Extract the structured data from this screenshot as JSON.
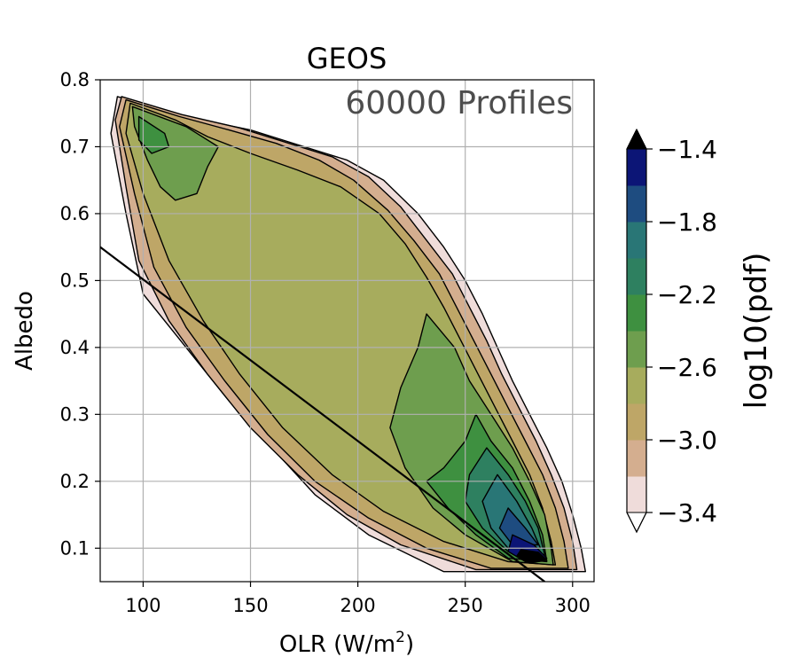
{
  "chart_data": {
    "type": "contour",
    "title": "GEOS",
    "annotation": "60000 Profiles",
    "xlabel_main": "OLR (W/m",
    "xlabel_sup": "2",
    "xlabel_close": ")",
    "ylabel": "Albedo",
    "xlim": [
      80,
      310
    ],
    "ylim": [
      0.05,
      0.8
    ],
    "xticks": [
      100,
      150,
      200,
      250,
      300
    ],
    "xtick_labels": [
      "100",
      "150",
      "200",
      "250",
      "300"
    ],
    "yticks": [
      0.1,
      0.2,
      0.3,
      0.4,
      0.5,
      0.6,
      0.7,
      0.8
    ],
    "ytick_labels": [
      "0.1",
      "0.2",
      "0.3",
      "0.4",
      "0.5",
      "0.6",
      "0.7",
      "0.8"
    ],
    "grid": true,
    "reference_line": {
      "x": [
        80,
        287
      ],
      "y": [
        0.55,
        0.05
      ]
    },
    "colorbar": {
      "label": "log10(pdf)",
      "levels": [
        -3.4,
        -3.2,
        -3.0,
        -2.8,
        -2.6,
        -2.4,
        -2.2,
        -2.0,
        -1.8,
        -1.6,
        -1.4
      ],
      "colors": [
        "#efdcda",
        "#d4ae8f",
        "#bea667",
        "#a7ac5d",
        "#6e9e4e",
        "#3e9040",
        "#2e8060",
        "#297676",
        "#1e4c80",
        "#0c1576"
      ],
      "extend_low_color": "#ffffff",
      "extend_high_color": "#000000",
      "tick_values": [
        -1.4,
        -1.8,
        -2.2,
        -2.6,
        -3.0,
        -3.4
      ],
      "tick_labels": [
        "−1.4",
        "−1.8",
        "−2.2",
        "−2.6",
        "−3.0",
        "−3.4"
      ]
    },
    "regions": [
      {
        "level": -3.4,
        "color": "#efdcda",
        "points": [
          [
            88,
            0.775
          ],
          [
            120,
            0.745
          ],
          [
            150,
            0.725
          ],
          [
            175,
            0.7
          ],
          [
            195,
            0.68
          ],
          [
            212,
            0.65
          ],
          [
            228,
            0.6
          ],
          [
            240,
            0.55
          ],
          [
            250,
            0.5
          ],
          [
            258,
            0.45
          ],
          [
            265,
            0.4
          ],
          [
            272,
            0.35
          ],
          [
            280,
            0.3
          ],
          [
            288,
            0.25
          ],
          [
            295,
            0.2
          ],
          [
            300,
            0.15
          ],
          [
            304,
            0.1
          ],
          [
            306,
            0.065
          ],
          [
            240,
            0.065
          ],
          [
            205,
            0.12
          ],
          [
            180,
            0.18
          ],
          [
            160,
            0.25
          ],
          [
            140,
            0.32
          ],
          [
            120,
            0.4
          ],
          [
            100,
            0.48
          ],
          [
            92,
            0.6
          ],
          [
            85,
            0.72
          ]
        ]
      },
      {
        "level": -3.2,
        "color": "#d4ae8f",
        "points": [
          [
            90,
            0.775
          ],
          [
            118,
            0.748
          ],
          [
            145,
            0.728
          ],
          [
            168,
            0.705
          ],
          [
            188,
            0.685
          ],
          [
            205,
            0.655
          ],
          [
            220,
            0.61
          ],
          [
            232,
            0.56
          ],
          [
            244,
            0.51
          ],
          [
            252,
            0.46
          ],
          [
            260,
            0.41
          ],
          [
            267,
            0.36
          ],
          [
            275,
            0.31
          ],
          [
            283,
            0.26
          ],
          [
            290,
            0.21
          ],
          [
            296,
            0.16
          ],
          [
            300,
            0.11
          ],
          [
            302,
            0.068
          ],
          [
            255,
            0.068
          ],
          [
            220,
            0.105
          ],
          [
            195,
            0.15
          ],
          [
            172,
            0.21
          ],
          [
            150,
            0.28
          ],
          [
            130,
            0.36
          ],
          [
            112,
            0.44
          ],
          [
            98,
            0.53
          ],
          [
            92,
            0.64
          ],
          [
            87,
            0.74
          ]
        ]
      },
      {
        "level": -3.0,
        "color": "#bea667",
        "points": [
          [
            92,
            0.77
          ],
          [
            117,
            0.745
          ],
          [
            140,
            0.725
          ],
          [
            162,
            0.705
          ],
          [
            182,
            0.68
          ],
          [
            198,
            0.65
          ],
          [
            214,
            0.605
          ],
          [
            226,
            0.56
          ],
          [
            238,
            0.51
          ],
          [
            246,
            0.46
          ],
          [
            254,
            0.41
          ],
          [
            262,
            0.36
          ],
          [
            270,
            0.31
          ],
          [
            278,
            0.26
          ],
          [
            286,
            0.21
          ],
          [
            292,
            0.16
          ],
          [
            296,
            0.11
          ],
          [
            298,
            0.07
          ],
          [
            262,
            0.07
          ],
          [
            232,
            0.1
          ],
          [
            205,
            0.145
          ],
          [
            180,
            0.2
          ],
          [
            158,
            0.27
          ],
          [
            138,
            0.35
          ],
          [
            120,
            0.43
          ],
          [
            105,
            0.52
          ],
          [
            96,
            0.63
          ],
          [
            89,
            0.73
          ]
        ]
      },
      {
        "level": -2.8,
        "color": "#a7ac5d",
        "points": [
          [
            94,
            0.765
          ],
          [
            115,
            0.74
          ],
          [
            130,
            0.715
          ],
          [
            150,
            0.69
          ],
          [
            172,
            0.665
          ],
          [
            192,
            0.64
          ],
          [
            210,
            0.6
          ],
          [
            222,
            0.555
          ],
          [
            232,
            0.505
          ],
          [
            240,
            0.46
          ],
          [
            248,
            0.41
          ],
          [
            256,
            0.36
          ],
          [
            264,
            0.31
          ],
          [
            272,
            0.26
          ],
          [
            280,
            0.21
          ],
          [
            286,
            0.16
          ],
          [
            290,
            0.11
          ],
          [
            292,
            0.075
          ],
          [
            270,
            0.08
          ],
          [
            240,
            0.11
          ],
          [
            212,
            0.155
          ],
          [
            188,
            0.21
          ],
          [
            165,
            0.28
          ],
          [
            145,
            0.36
          ],
          [
            128,
            0.44
          ],
          [
            112,
            0.53
          ],
          [
            100,
            0.63
          ],
          [
            92,
            0.72
          ]
        ]
      },
      {
        "level": -2.6,
        "color": "#6e9e4e",
        "points": [
          [
            95,
            0.76
          ],
          [
            120,
            0.73
          ],
          [
            135,
            0.7
          ],
          [
            130,
            0.67
          ],
          [
            125,
            0.63
          ],
          [
            115,
            0.62
          ],
          [
            108,
            0.64
          ],
          [
            102,
            0.68
          ],
          [
            96,
            0.73
          ]
        ]
      },
      {
        "level": -2.6,
        "color": "#6e9e4e",
        "points": [
          [
            232,
            0.45
          ],
          [
            245,
            0.4
          ],
          [
            252,
            0.35
          ],
          [
            262,
            0.3
          ],
          [
            272,
            0.25
          ],
          [
            280,
            0.2
          ],
          [
            287,
            0.15
          ],
          [
            290,
            0.1
          ],
          [
            291,
            0.075
          ],
          [
            272,
            0.08
          ],
          [
            250,
            0.12
          ],
          [
            235,
            0.16
          ],
          [
            222,
            0.22
          ],
          [
            215,
            0.28
          ],
          [
            220,
            0.34
          ],
          [
            228,
            0.4
          ]
        ]
      },
      {
        "level": -2.4,
        "color": "#3e9040",
        "points": [
          [
            98,
            0.745
          ],
          [
            110,
            0.72
          ],
          [
            112,
            0.7
          ],
          [
            104,
            0.69
          ],
          [
            98,
            0.71
          ]
        ]
      },
      {
        "level": -2.4,
        "color": "#3e9040",
        "points": [
          [
            255,
            0.3
          ],
          [
            262,
            0.26
          ],
          [
            272,
            0.22
          ],
          [
            280,
            0.17
          ],
          [
            286,
            0.12
          ],
          [
            288,
            0.08
          ],
          [
            270,
            0.085
          ],
          [
            255,
            0.12
          ],
          [
            242,
            0.16
          ],
          [
            232,
            0.2
          ],
          [
            240,
            0.22
          ],
          [
            250,
            0.26
          ]
        ]
      },
      {
        "level": -2.2,
        "color": "#2e8060",
        "points": [
          [
            260,
            0.25
          ],
          [
            270,
            0.21
          ],
          [
            278,
            0.17
          ],
          [
            284,
            0.13
          ],
          [
            287,
            0.09
          ],
          [
            270,
            0.095
          ],
          [
            258,
            0.13
          ],
          [
            250,
            0.17
          ],
          [
            252,
            0.21
          ]
        ]
      },
      {
        "level": -2.0,
        "color": "#297676",
        "points": [
          [
            265,
            0.21
          ],
          [
            274,
            0.17
          ],
          [
            281,
            0.13
          ],
          [
            285,
            0.1
          ],
          [
            270,
            0.1
          ],
          [
            262,
            0.13
          ],
          [
            258,
            0.17
          ]
        ]
      },
      {
        "level": -1.8,
        "color": "#1e4c80",
        "points": [
          [
            270,
            0.16
          ],
          [
            278,
            0.13
          ],
          [
            284,
            0.105
          ],
          [
            272,
            0.105
          ],
          [
            266,
            0.13
          ]
        ]
      },
      {
        "level": -1.6,
        "color": "#0c1576",
        "points": [
          [
            272,
            0.12
          ],
          [
            282,
            0.105
          ],
          [
            288,
            0.085
          ],
          [
            278,
            0.08
          ],
          [
            270,
            0.095
          ]
        ]
      },
      {
        "level": -1.4,
        "color": "#000000",
        "points": [
          [
            276,
            0.098
          ],
          [
            284,
            0.094
          ],
          [
            288,
            0.082
          ],
          [
            280,
            0.078
          ],
          [
            274,
            0.088
          ]
        ]
      }
    ]
  }
}
